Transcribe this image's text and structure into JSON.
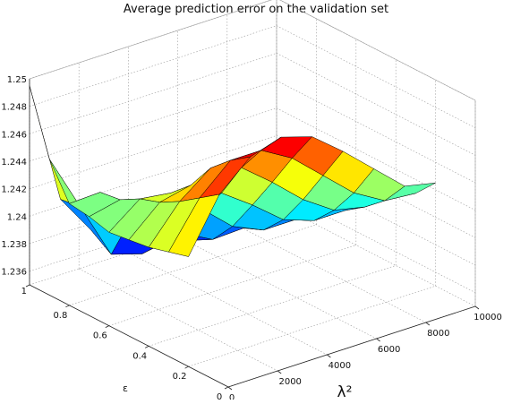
{
  "chart_data": {
    "type": "surface3d",
    "title": "Average prediction error on the validation set",
    "xlabel": "ε",
    "ylabel": "λ²",
    "zlabel": "",
    "x": [
      1.0,
      0.9,
      0.8,
      0.7,
      0.6,
      0.5,
      0.4,
      0.3,
      0.2
    ],
    "y": [
      0,
      1250,
      2500,
      3750,
      5000,
      6250,
      7500,
      8750,
      10000
    ],
    "z": [
      [
        1.2495,
        1.2405,
        1.2375,
        1.2368,
        1.2365,
        1.2363,
        1.2362,
        1.2362,
        1.2362
      ],
      [
        1.2449,
        1.2407,
        1.2365,
        1.2358,
        1.2362,
        1.2365,
        1.2367,
        1.2367,
        1.2367
      ],
      [
        1.2424,
        1.2425,
        1.2398,
        1.2373,
        1.2368,
        1.2372,
        1.2375,
        1.2377,
        1.2377
      ],
      [
        1.2422,
        1.2427,
        1.2413,
        1.2388,
        1.2376,
        1.2377,
        1.238,
        1.2382,
        1.2382
      ],
      [
        1.2418,
        1.2435,
        1.2432,
        1.2413,
        1.2393,
        1.2383,
        1.2383,
        1.2383,
        1.2383
      ],
      [
        1.242,
        1.244,
        1.2445,
        1.2432,
        1.2416,
        1.2398,
        1.239,
        1.239,
        1.239
      ],
      [
        1.2422,
        1.2448,
        1.2465,
        1.2458,
        1.244,
        1.242,
        1.2405,
        1.24,
        1.24
      ],
      [
        1.2426,
        1.2458,
        1.2478,
        1.2478,
        1.2465,
        1.2445,
        1.2425,
        1.2412,
        1.241
      ],
      [
        1.243,
        1.2468,
        1.2488,
        1.2495,
        1.2488,
        1.247,
        1.245,
        1.243,
        1.2425
      ]
    ],
    "xlim": [
      0,
      1
    ],
    "ylim": [
      0,
      10000
    ],
    "zlim": [
      1.235,
      1.25
    ],
    "xticks": [
      "0",
      "0.2",
      "0.4",
      "0.6",
      "0.8",
      "1"
    ],
    "yticks": [
      "0",
      "2000",
      "4000",
      "6000",
      "8000",
      "10000"
    ],
    "zticks": [
      "1.236",
      "1.238",
      "1.24",
      "1.242",
      "1.244",
      "1.246",
      "1.248",
      "1.25"
    ],
    "grid": true,
    "colormap": "jet"
  }
}
